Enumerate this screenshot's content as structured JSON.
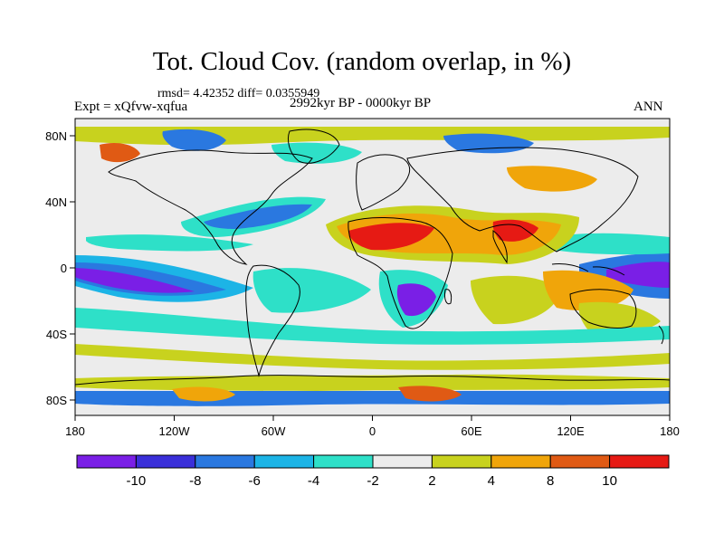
{
  "title": "Tot. Cloud Cov. (random overlap, in %)",
  "stats": "rmsd= 4.42352 diff= 0.0355949",
  "experiment": "Expt = xQfvw-xqfua",
  "period": "2992kyr BP - 0000kyr BP",
  "season": "ANN",
  "map": {
    "lon_ticks": [
      "180",
      "120W",
      "60W",
      "0",
      "60E",
      "120E",
      "180"
    ],
    "lat_ticks": [
      "80N",
      "40N",
      "0",
      "40S",
      "80S"
    ]
  },
  "colorbar": {
    "labels": [
      "-10",
      "-8",
      "-6",
      "-4",
      "-2",
      "2",
      "4",
      "8",
      "10"
    ],
    "colors": [
      "#7a1fe6",
      "#3a2fd9",
      "#2a78e0",
      "#1cb4e6",
      "#2ee0c8",
      "#ececec",
      "#c8d21e",
      "#f0a50a",
      "#e05a14",
      "#e61a14"
    ]
  },
  "colors": {
    "neutral": "#ececec",
    "strong_neg": "#7a1fe6",
    "strong_pos": "#e61a14"
  }
}
